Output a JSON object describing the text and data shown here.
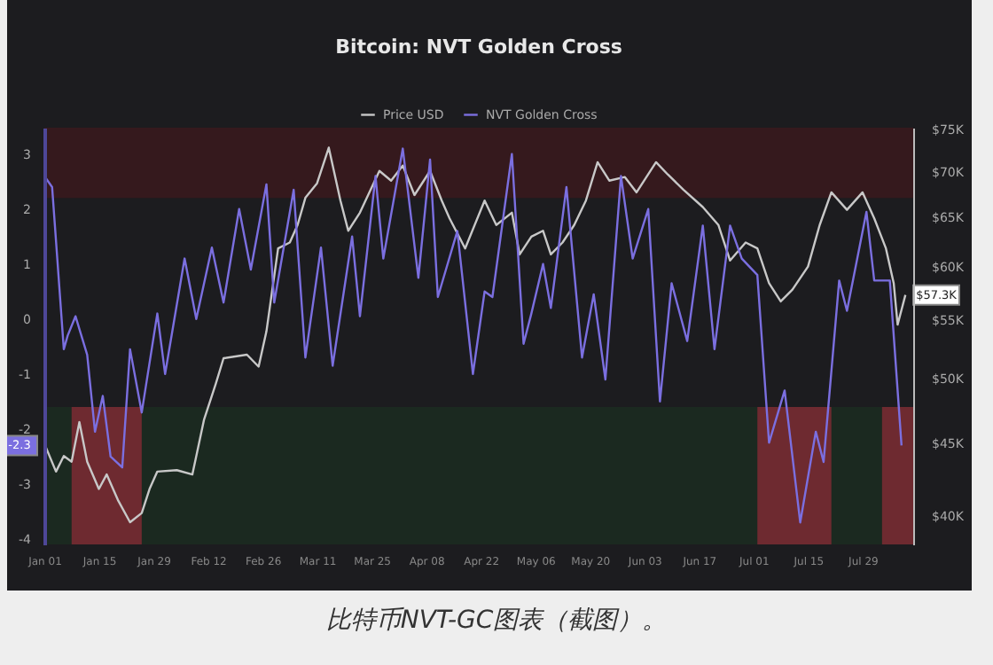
{
  "chart_data": {
    "type": "line",
    "title": "Bitcoin: NVT Golden Cross",
    "x": [
      "--01-01",
      "--01-03",
      "--01-06",
      "--01-07",
      "--01-09",
      "--01-12",
      "--01-14",
      "--01-16",
      "--01-18",
      "--01-21",
      "--01-23",
      "--01-26",
      "--01-30",
      "--02-01",
      "--02-06",
      "--02-09",
      "--02-13",
      "--02-16",
      "--02-20",
      "--02-23",
      "--02-27",
      "--02-29",
      "--03-05",
      "--03-08",
      "--03-12",
      "--03-15",
      "--03-20",
      "--03-22",
      "--03-26",
      "--03-28",
      "--04-02",
      "--04-06",
      "--04-09",
      "--04-11",
      "--04-16",
      "--04-20",
      "--04-23",
      "--04-25",
      "--04-30",
      "--05-03",
      "--05-05",
      "--05-08",
      "--05-10",
      "--05-14",
      "--05-18",
      "--05-21",
      "--05-24",
      "--05-28",
      "--05-31",
      "--06-04",
      "--06-07",
      "--06-10",
      "--06-14",
      "--06-18",
      "--06-21",
      "--06-25",
      "--06-28",
      "--07-02",
      "--07-05",
      "--07-09",
      "--07-13",
      "--07-17",
      "--07-19",
      "--07-23",
      "--07-25",
      "--07-30",
      "--08-01",
      "--08-05",
      "--08-08"
    ],
    "series": [
      {
        "name": "Price USD",
        "color": "#c8c8c8",
        "axis": "y2",
        "x": [
          "--01-01",
          "--01-04",
          "--01-06",
          "--01-08",
          "--01-10",
          "--01-12",
          "--01-15",
          "--01-17",
          "--01-20",
          "--01-23",
          "--01-26",
          "--01-28",
          "--01-30",
          "--02-04",
          "--02-08",
          "--02-11",
          "--02-14",
          "--02-16",
          "--02-22",
          "--02-25",
          "--02-27",
          "--03-01",
          "--03-04",
          "--03-06",
          "--03-08",
          "--03-11",
          "--03-14",
          "--03-17",
          "--03-19",
          "--03-22",
          "--03-27",
          "--03-30",
          "--04-02",
          "--04-05",
          "--04-09",
          "--04-12",
          "--04-14",
          "--04-18",
          "--04-23",
          "--04-26",
          "--04-30",
          "--05-02",
          "--05-05",
          "--05-08",
          "--05-10",
          "--05-13",
          "--05-16",
          "--05-19",
          "--05-22",
          "--05-25",
          "--05-29",
          "--06-01",
          "--06-06",
          "--06-09",
          "--06-13",
          "--06-18",
          "--06-22",
          "--06-25",
          "--06-29",
          "--07-02",
          "--07-05",
          "--07-08",
          "--07-11",
          "--07-15",
          "--07-18",
          "--07-21",
          "--07-25",
          "--07-29",
          "--08-01",
          "--08-04",
          "--08-06",
          "--08-07",
          "--08-09"
        ],
        "values": [
          45000,
          43000,
          44100,
          43700,
          46600,
          43700,
          41800,
          42800,
          41000,
          39600,
          40200,
          41800,
          43000,
          43100,
          42800,
          46800,
          49600,
          51700,
          52000,
          51000,
          54000,
          61800,
          62400,
          64200,
          67100,
          68700,
          72800,
          66800,
          63600,
          65500,
          70100,
          69000,
          70700,
          67400,
          70100,
          66800,
          64900,
          61800,
          66800,
          64200,
          65500,
          61200,
          63000,
          63600,
          61200,
          62400,
          64200,
          66800,
          71100,
          69000,
          69400,
          67700,
          71100,
          69700,
          68000,
          66100,
          64200,
          60600,
          62400,
          61800,
          58400,
          56700,
          57800,
          60000,
          64200,
          67700,
          65800,
          67700,
          64900,
          61800,
          58400,
          54600,
          57300
        ]
      },
      {
        "name": "NVT Golden Cross",
        "color": "#7b6fe0",
        "values": [
          2.6,
          2.4,
          -0.55,
          -0.3,
          0.05,
          -0.65,
          -2.05,
          -1.4,
          -2.5,
          -2.7,
          -0.55,
          -1.7,
          0.1,
          -1.0,
          1.1,
          0.0,
          1.3,
          0.3,
          2.0,
          0.9,
          2.45,
          0.3,
          2.35,
          -0.7,
          1.3,
          -0.85,
          1.5,
          0.05,
          2.6,
          1.1,
          3.1,
          0.75,
          2.9,
          0.4,
          1.6,
          -1.0,
          0.5,
          0.4,
          3.0,
          -0.45,
          0.1,
          1.0,
          0.2,
          2.4,
          -0.7,
          0.45,
          -1.1,
          2.6,
          1.1,
          2.0,
          -1.5,
          0.65,
          -0.4,
          1.7,
          -0.55,
          1.7,
          1.1,
          0.8,
          -2.25,
          -1.3,
          -3.7,
          -2.05,
          -2.6,
          0.7,
          0.15,
          1.95,
          0.7,
          0.7,
          -2.3
        ]
      }
    ],
    "xlim": [
      "--01-01",
      "--08-11"
    ],
    "xticks": [
      {
        "value": "--01-01",
        "label": "Jan 01"
      },
      {
        "value": "--01-15",
        "label": "Jan 15"
      },
      {
        "value": "--01-29",
        "label": "Jan 29"
      },
      {
        "value": "--02-12",
        "label": "Feb 12"
      },
      {
        "value": "--02-26",
        "label": "Feb 26"
      },
      {
        "value": "--03-11",
        "label": "Mar 11"
      },
      {
        "value": "--03-25",
        "label": "Mar 25"
      },
      {
        "value": "--04-08",
        "label": "Apr 08"
      },
      {
        "value": "--04-22",
        "label": "Apr 22"
      },
      {
        "value": "--05-06",
        "label": "May 06"
      },
      {
        "value": "--05-20",
        "label": "May 20"
      },
      {
        "value": "--06-03",
        "label": "Jun 03"
      },
      {
        "value": "--06-17",
        "label": "Jun 17"
      },
      {
        "value": "--07-01",
        "label": "Jul 01"
      },
      {
        "value": "--07-15",
        "label": "Jul 15"
      },
      {
        "value": "--07-29",
        "label": "Jul 29"
      }
    ],
    "ylim": [
      -4.1,
      3.48
    ],
    "yticks": [
      -4,
      -3,
      -2,
      -1,
      0,
      1,
      2,
      3
    ],
    "y2lim": [
      38200,
      75200
    ],
    "y2ticks": [
      {
        "value": 40000,
        "label": "$40K"
      },
      {
        "value": 45000,
        "label": "$45K"
      },
      {
        "value": 50000,
        "label": "$50K"
      },
      {
        "value": 55000,
        "label": "$55K"
      },
      {
        "value": 60000,
        "label": "$60K"
      },
      {
        "value": 65000,
        "label": "$65K"
      },
      {
        "value": 70000,
        "label": "$70K"
      },
      {
        "value": 75000,
        "label": "$75K"
      }
    ],
    "log": "y2",
    "bands": [
      {
        "axis": "y",
        "from": 2.2,
        "to": 3.48,
        "color": "#35191d"
      },
      {
        "axis": "y",
        "from": -4.1,
        "to": -1.6,
        "color": "#1b2920"
      },
      {
        "axis": "x",
        "from": "--01-08",
        "to": "--01-26",
        "color": "#6e2a30"
      },
      {
        "axis": "x",
        "from": "--07-02",
        "to": "--07-21",
        "color": "#6e2a30"
      },
      {
        "axis": "x",
        "from": "--08-03",
        "to": "--08-11",
        "color": "#6e2a30"
      }
    ],
    "annotations": [
      "-2.3",
      "$57.3K",
      "比特币NVT-GC图表（截图）。"
    ],
    "legend": "top",
    "grid": false,
    "line_style": "solid",
    "marker": "none"
  }
}
